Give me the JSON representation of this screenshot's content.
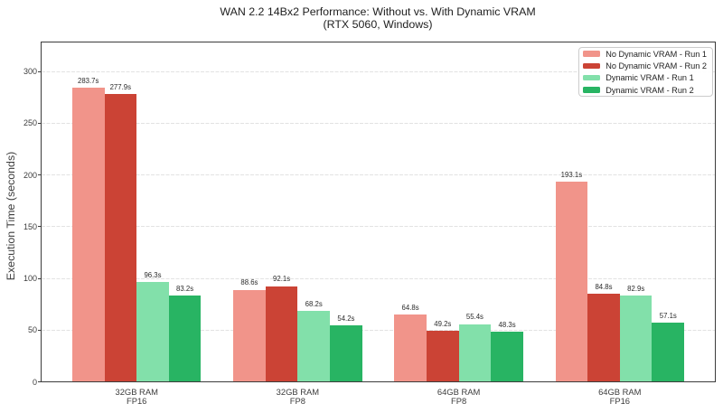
{
  "chart_data": {
    "type": "bar",
    "title": "WAN 2.2 14Bx2 Performance: Without vs. With Dynamic VRAM",
    "subtitle": "(RTX 5060, Windows)",
    "ylabel": "Execution Time (seconds)",
    "xlabel": "",
    "categories": [
      "32GB RAM\nFP16",
      "32GB RAM\nFP8",
      "64GB RAM\nFP8",
      "64GB RAM\nFP16"
    ],
    "series": [
      {
        "name": "No Dynamic VRAM - Run 1",
        "color": "#F1948A",
        "values": [
          283.7,
          88.6,
          64.8,
          193.1
        ]
      },
      {
        "name": "No Dynamic VRAM - Run 2",
        "color": "#CB4335",
        "values": [
          277.9,
          92.1,
          49.2,
          84.8
        ]
      },
      {
        "name": "Dynamic VRAM - Run 1",
        "color": "#82E0AA",
        "values": [
          96.3,
          68.2,
          55.4,
          82.9
        ]
      },
      {
        "name": "Dynamic VRAM - Run 2",
        "color": "#28B463",
        "values": [
          83.2,
          54.2,
          48.3,
          57.1
        ]
      }
    ],
    "value_label_suffix": "s",
    "yticks": [
      0,
      50,
      100,
      150,
      200,
      250,
      300
    ],
    "ylim": [
      0,
      327.7
    ],
    "grid": "horizontal-dashed",
    "legend_position": "top-right"
  }
}
